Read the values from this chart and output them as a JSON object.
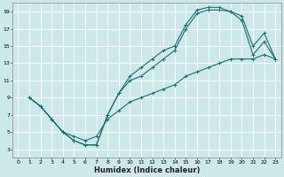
{
  "xlabel": "Humidex (Indice chaleur)",
  "bg_color": "#cce8e8",
  "grid_color": "#ffffff",
  "line_color": "#1a7070",
  "xlim": [
    -0.5,
    23.5
  ],
  "ylim": [
    2,
    20
  ],
  "xticks": [
    0,
    1,
    2,
    3,
    4,
    5,
    6,
    7,
    8,
    9,
    10,
    11,
    12,
    13,
    14,
    15,
    16,
    17,
    18,
    19,
    20,
    21,
    22,
    23
  ],
  "yticks": [
    3,
    5,
    7,
    9,
    11,
    13,
    15,
    17,
    19
  ],
  "line1_x": [
    1,
    2,
    3,
    4,
    5,
    6,
    7,
    8,
    9,
    10,
    11,
    12,
    13,
    14,
    15,
    16,
    17,
    18,
    19,
    20,
    21,
    22,
    23
  ],
  "line1_y": [
    9,
    8,
    6.5,
    5,
    4,
    3.5,
    3.5,
    7,
    9.5,
    11.5,
    12.5,
    13.5,
    14.5,
    15,
    17.5,
    19.2,
    19.5,
    19.5,
    19.0,
    18.5,
    15.0,
    16.5,
    13.5
  ],
  "line2_x": [
    1,
    2,
    3,
    4,
    5,
    6,
    7,
    8,
    9,
    10,
    11,
    12,
    13,
    14,
    15,
    16,
    17,
    18,
    19,
    20,
    21,
    22,
    23
  ],
  "line2_y": [
    9,
    8,
    6.5,
    5,
    4,
    3.5,
    3.5,
    7,
    9.5,
    11.0,
    11.5,
    12.5,
    13.5,
    14.5,
    17.0,
    18.8,
    19.2,
    19.2,
    19.0,
    18.0,
    14.0,
    15.5,
    13.5
  ],
  "line3_x": [
    1,
    2,
    3,
    4,
    5,
    6,
    7,
    8,
    9,
    10,
    11,
    12,
    13,
    14,
    15,
    16,
    17,
    18,
    19,
    20,
    21,
    22,
    23
  ],
  "line3_y": [
    9,
    8,
    6.5,
    5.0,
    4.5,
    4.0,
    4.5,
    6.5,
    7.5,
    8.5,
    9.0,
    9.5,
    10.0,
    10.5,
    11.5,
    12.0,
    12.5,
    13.0,
    13.5,
    13.5,
    13.5,
    14.0,
    13.5
  ]
}
